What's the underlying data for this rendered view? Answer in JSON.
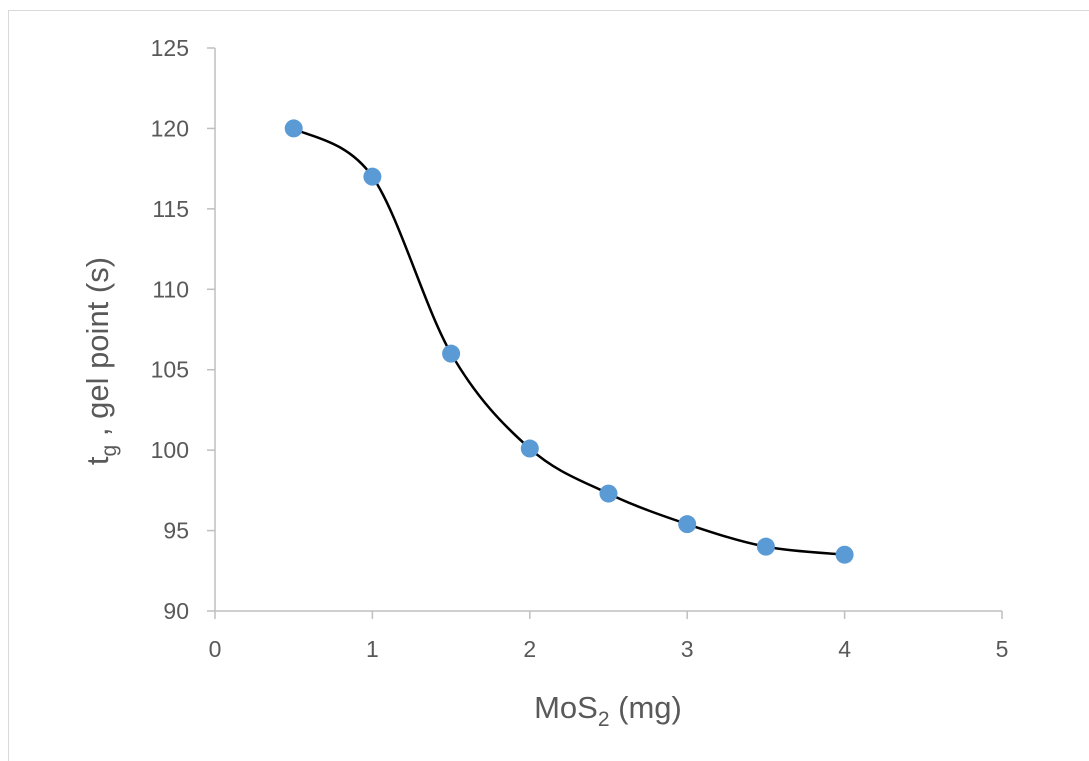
{
  "chart_data": {
    "type": "scatter",
    "title": "",
    "xlabel": {
      "base": "MoS",
      "sub": "2",
      "suffix": " (mg)"
    },
    "ylabel": {
      "base": "t",
      "sub": "g",
      "suffix": " , gel point (s)"
    },
    "xlim": [
      0,
      5
    ],
    "ylim": [
      90,
      125
    ],
    "xticks": [
      "0",
      "1",
      "2",
      "3",
      "4",
      "5"
    ],
    "yticks": [
      "90",
      "95",
      "100",
      "105",
      "110",
      "115",
      "120",
      "125"
    ],
    "grid": false,
    "legend": false,
    "series": [
      {
        "x": [
          0.5,
          1.0,
          1.5,
          2.0,
          2.5,
          3.0,
          3.5,
          4.0
        ],
        "y": [
          120.0,
          117.0,
          106.0,
          100.1,
          97.3,
          95.4,
          94.0,
          93.5
        ],
        "marker_color": "#5b9bd5",
        "line_color": "#000000",
        "line_style": "smooth"
      }
    ]
  }
}
